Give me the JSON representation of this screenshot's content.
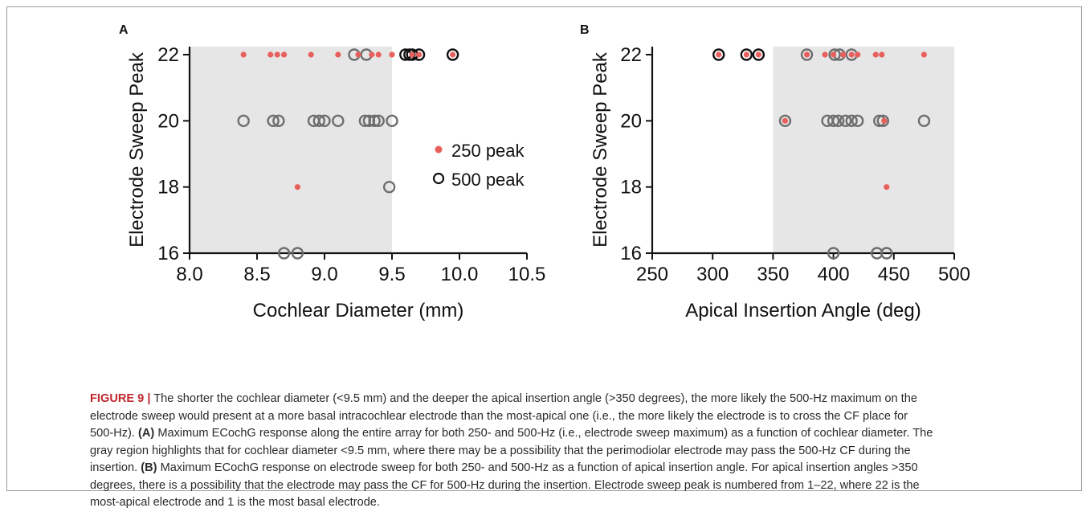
{
  "colors": {
    "shade": "#e6e6e6",
    "red_dot": "#e8605c",
    "circle_gray": "#6e6e6e",
    "circle_black": "#111111",
    "axis": "#111111",
    "figure_label": "#c0272d"
  },
  "chart_data": [
    {
      "type": "scatter",
      "panel_label": "A",
      "xlabel": "Cochlear Diameter (mm)",
      "ylabel": "Electrode Sweep Peak",
      "xlim": [
        8.0,
        10.5
      ],
      "ylim": [
        16,
        22
      ],
      "x_ticks": [
        "8.0",
        "8.5",
        "9.0",
        "9.5",
        "10.0",
        "10.5"
      ],
      "y_ticks": [
        "16",
        "18",
        "20",
        "22"
      ],
      "shaded_region_x": [
        8.0,
        9.5
      ],
      "legend": {
        "placement": "right",
        "entries": [
          "250 peak",
          "500 peak"
        ]
      },
      "series": [
        {
          "name": "250 peak",
          "marker": "filled-circle",
          "points": [
            [
              8.4,
              22
            ],
            [
              8.6,
              22
            ],
            [
              8.65,
              22
            ],
            [
              8.7,
              22
            ],
            [
              8.9,
              22
            ],
            [
              9.1,
              22
            ],
            [
              9.25,
              22
            ],
            [
              9.35,
              22
            ],
            [
              9.4,
              22
            ],
            [
              9.5,
              22
            ],
            [
              9.65,
              22
            ],
            [
              9.7,
              22
            ],
            [
              9.95,
              22
            ],
            [
              8.8,
              18
            ]
          ]
        },
        {
          "name": "500 peak",
          "marker": "open-circle",
          "points": [
            [
              9.22,
              22
            ],
            [
              9.31,
              22
            ],
            [
              9.6,
              22
            ],
            [
              9.63,
              22
            ],
            [
              9.65,
              22
            ],
            [
              9.7,
              22
            ],
            [
              9.95,
              22
            ],
            [
              8.4,
              20
            ],
            [
              8.62,
              20
            ],
            [
              8.66,
              20
            ],
            [
              8.92,
              20
            ],
            [
              8.96,
              20
            ],
            [
              9.0,
              20
            ],
            [
              9.1,
              20
            ],
            [
              9.3,
              20
            ],
            [
              9.33,
              20
            ],
            [
              9.37,
              20
            ],
            [
              9.4,
              20
            ],
            [
              9.5,
              20
            ],
            [
              9.48,
              18
            ],
            [
              8.7,
              16
            ],
            [
              8.8,
              16
            ]
          ],
          "dark_outline_points": [
            [
              9.6,
              22
            ],
            [
              9.63,
              22
            ],
            [
              9.65,
              22
            ],
            [
              9.7,
              22
            ],
            [
              9.95,
              22
            ]
          ]
        }
      ]
    },
    {
      "type": "scatter",
      "panel_label": "B",
      "xlabel": "Apical Insertion Angle (deg)",
      "ylabel": "Electrode Sweep Peak",
      "xlim": [
        250,
        500
      ],
      "ylim": [
        16,
        22
      ],
      "x_ticks": [
        "250",
        "300",
        "350",
        "400",
        "450",
        "500"
      ],
      "y_ticks": [
        "16",
        "18",
        "20",
        "22"
      ],
      "shaded_region_x": [
        350,
        500
      ],
      "series": [
        {
          "name": "250 peak",
          "marker": "filled-circle",
          "points": [
            [
              305,
              22
            ],
            [
              328,
              22
            ],
            [
              338,
              22
            ],
            [
              378,
              22
            ],
            [
              393,
              22
            ],
            [
              400,
              22
            ],
            [
              408,
              22
            ],
            [
              415,
              22
            ],
            [
              420,
              22
            ],
            [
              435,
              22
            ],
            [
              440,
              22
            ],
            [
              475,
              22
            ],
            [
              360,
              20
            ],
            [
              442,
              20
            ],
            [
              444,
              18
            ]
          ]
        },
        {
          "name": "500 peak",
          "marker": "open-circle",
          "points": [
            [
              305,
              22
            ],
            [
              328,
              22
            ],
            [
              338,
              22
            ],
            [
              378,
              22
            ],
            [
              401,
              22
            ],
            [
              405,
              22
            ],
            [
              415,
              22
            ],
            [
              360,
              20
            ],
            [
              395,
              20
            ],
            [
              400,
              20
            ],
            [
              404,
              20
            ],
            [
              410,
              20
            ],
            [
              415,
              20
            ],
            [
              420,
              20
            ],
            [
              438,
              20
            ],
            [
              441,
              20
            ],
            [
              475,
              20
            ],
            [
              400,
              16
            ],
            [
              436,
              16
            ],
            [
              444,
              16
            ]
          ],
          "dark_outline_points": [
            [
              305,
              22
            ],
            [
              328,
              22
            ],
            [
              338,
              22
            ]
          ]
        }
      ]
    }
  ],
  "caption": {
    "label": "FIGURE 9 |",
    "lines": [
      [
        {
          "t": " The shorter the cochlear diameter (<9.5 mm) and the deeper the apical insertion angle (>350 degrees), the more likely the 500-Hz maximum on the"
        }
      ],
      [
        {
          "t": "electrode sweep would present at a more basal intracochlear electrode than the most-apical one (i.e., the more likely the electrode is to cross the CF place for"
        }
      ],
      [
        {
          "t": "500-Hz). "
        },
        {
          "t": "(A)",
          "b": true
        },
        {
          "t": " Maximum ECochG response along the entire array for both 250- and 500-Hz (i.e., electrode sweep maximum) as a function of cochlear diameter. The"
        }
      ],
      [
        {
          "t": "gray region highlights that for cochlear diameter <9.5 mm, where there may be a possibility that the perimodiolar electrode may pass the 500-Hz CF during the"
        }
      ],
      [
        {
          "t": "insertion. "
        },
        {
          "t": "(B)",
          "b": true
        },
        {
          "t": " Maximum ECochG response on electrode sweep for both 250- and 500-Hz as a function of apical insertion angle. For apical insertion angles >350"
        }
      ],
      [
        {
          "t": "degrees, there is a possibility that the electrode may pass the CF for 500-Hz during the insertion. Electrode sweep peak is numbered from 1–22, where 22 is the"
        }
      ],
      [
        {
          "t": "most-apical electrode and 1 is the most basal electrode."
        }
      ]
    ]
  }
}
